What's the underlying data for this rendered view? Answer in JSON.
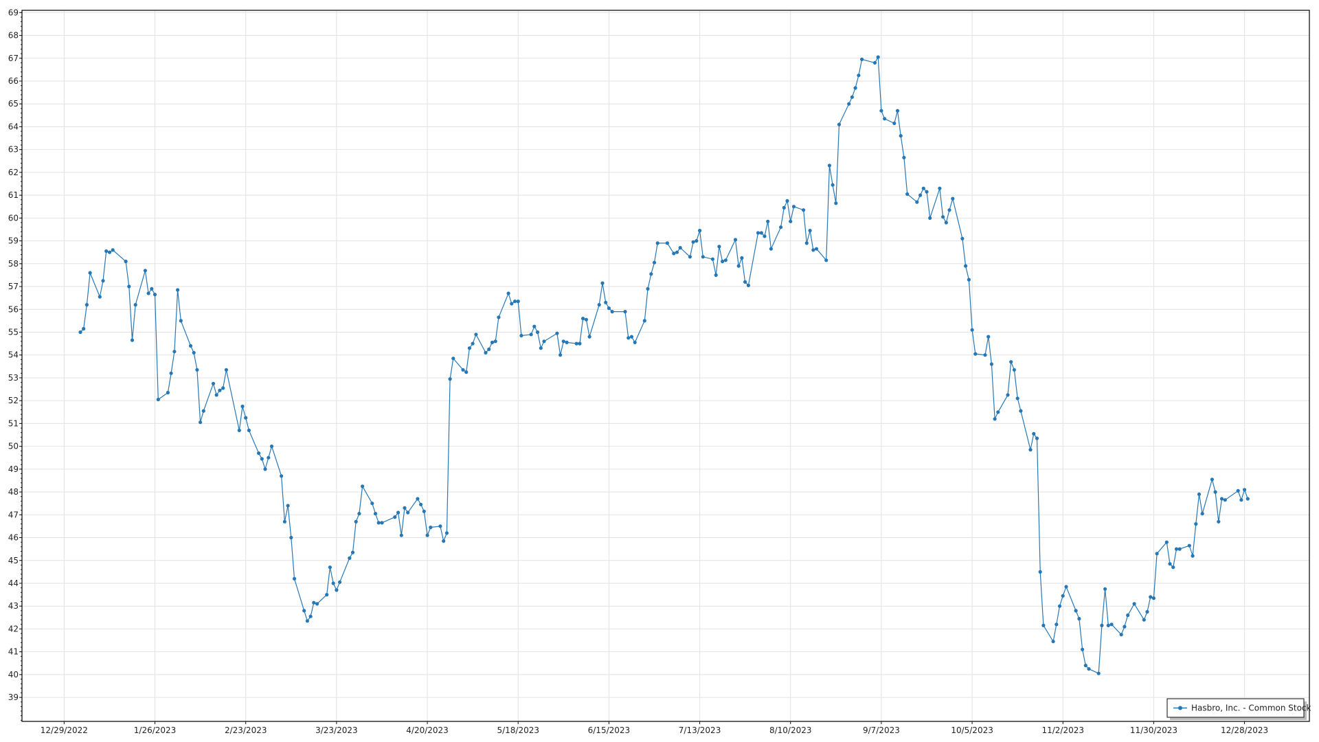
{
  "chart_data": {
    "type": "line",
    "title": "",
    "xlabel": "",
    "ylabel": "",
    "grid": true,
    "legend_position": "bottom-right",
    "series_color": "#2677b5",
    "xlim": [
      "12/16/2022",
      "1/17/2024"
    ],
    "ylim": [
      37.95,
      69.1
    ],
    "x_ticks": [
      "12/29/2022",
      "1/26/2023",
      "2/23/2023",
      "3/23/2023",
      "4/20/2023",
      "5/18/2023",
      "6/15/2023",
      "7/13/2023",
      "8/10/2023",
      "9/7/2023",
      "10/5/2023",
      "11/2/2023",
      "11/30/2023",
      "12/28/2023"
    ],
    "y_ticks": [
      39,
      40,
      41,
      42,
      43,
      44,
      45,
      46,
      47,
      48,
      49,
      50,
      51,
      52,
      53,
      54,
      55,
      56,
      57,
      58,
      59,
      60,
      61,
      62,
      63,
      64,
      65,
      66,
      67,
      68,
      69
    ],
    "series": [
      {
        "name": "Hasbro, Inc. - Common Stock",
        "x": [
          "1/3/2023",
          "1/4/2023",
          "1/5/2023",
          "1/6/2023",
          "1/9/2023",
          "1/10/2023",
          "1/11/2023",
          "1/12/2023",
          "1/13/2023",
          "1/17/2023",
          "1/18/2023",
          "1/19/2023",
          "1/20/2023",
          "1/23/2023",
          "1/24/2023",
          "1/25/2023",
          "1/26/2023",
          "1/27/2023",
          "1/30/2023",
          "1/31/2023",
          "2/1/2023",
          "2/2/2023",
          "2/3/2023",
          "2/6/2023",
          "2/7/2023",
          "2/8/2023",
          "2/9/2023",
          "2/10/2023",
          "2/13/2023",
          "2/14/2023",
          "2/15/2023",
          "2/16/2023",
          "2/17/2023",
          "2/21/2023",
          "2/22/2023",
          "2/23/2023",
          "2/24/2023",
          "2/27/2023",
          "2/28/2023",
          "3/1/2023",
          "3/2/2023",
          "3/3/2023",
          "3/6/2023",
          "3/7/2023",
          "3/8/2023",
          "3/9/2023",
          "3/10/2023",
          "3/13/2023",
          "3/14/2023",
          "3/15/2023",
          "3/16/2023",
          "3/17/2023",
          "3/20/2023",
          "3/21/2023",
          "3/22/2023",
          "3/23/2023",
          "3/24/2023",
          "3/27/2023",
          "3/28/2023",
          "3/29/2023",
          "3/30/2023",
          "3/31/2023",
          "4/3/2023",
          "4/4/2023",
          "4/5/2023",
          "4/6/2023",
          "4/10/2023",
          "4/11/2023",
          "4/12/2023",
          "4/13/2023",
          "4/14/2023",
          "4/17/2023",
          "4/18/2023",
          "4/19/2023",
          "4/20/2023",
          "4/21/2023",
          "4/24/2023",
          "4/25/2023",
          "4/26/2023",
          "4/27/2023",
          "4/28/2023",
          "5/1/2023",
          "5/2/2023",
          "5/3/2023",
          "5/4/2023",
          "5/5/2023",
          "5/8/2023",
          "5/9/2023",
          "5/10/2023",
          "5/11/2023",
          "5/12/2023",
          "5/15/2023",
          "5/16/2023",
          "5/17/2023",
          "5/18/2023",
          "5/19/2023",
          "5/22/2023",
          "5/23/2023",
          "5/24/2023",
          "5/25/2023",
          "5/26/2023",
          "5/30/2023",
          "5/31/2023",
          "6/1/2023",
          "6/2/2023",
          "6/5/2023",
          "6/6/2023",
          "6/7/2023",
          "6/8/2023",
          "6/9/2023",
          "6/12/2023",
          "6/13/2023",
          "6/14/2023",
          "6/15/2023",
          "6/16/2023",
          "6/20/2023",
          "6/21/2023",
          "6/22/2023",
          "6/23/2023",
          "6/26/2023",
          "6/27/2023",
          "6/28/2023",
          "6/29/2023",
          "6/30/2023",
          "7/3/2023",
          "7/5/2023",
          "7/6/2023",
          "7/7/2023",
          "7/10/2023",
          "7/11/2023",
          "7/12/2023",
          "7/13/2023",
          "7/14/2023",
          "7/17/2023",
          "7/18/2023",
          "7/19/2023",
          "7/20/2023",
          "7/21/2023",
          "7/24/2023",
          "7/25/2023",
          "7/26/2023",
          "7/27/2023",
          "7/28/2023",
          "7/31/2023",
          "8/1/2023",
          "8/2/2023",
          "8/3/2023",
          "8/4/2023",
          "8/7/2023",
          "8/8/2023",
          "8/9/2023",
          "8/10/2023",
          "8/11/2023",
          "8/14/2023",
          "8/15/2023",
          "8/16/2023",
          "8/17/2023",
          "8/18/2023",
          "8/21/2023",
          "8/22/2023",
          "8/23/2023",
          "8/24/2023",
          "8/25/2023",
          "8/28/2023",
          "8/29/2023",
          "8/30/2023",
          "8/31/2023",
          "9/1/2023",
          "9/5/2023",
          "9/6/2023",
          "9/7/2023",
          "9/8/2023",
          "9/11/2023",
          "9/12/2023",
          "9/13/2023",
          "9/14/2023",
          "9/15/2023",
          "9/18/2023",
          "9/19/2023",
          "9/20/2023",
          "9/21/2023",
          "9/22/2023",
          "9/25/2023",
          "9/26/2023",
          "9/27/2023",
          "9/28/2023",
          "9/29/2023",
          "10/2/2023",
          "10/3/2023",
          "10/4/2023",
          "10/5/2023",
          "10/6/2023",
          "10/9/2023",
          "10/10/2023",
          "10/11/2023",
          "10/12/2023",
          "10/13/2023",
          "10/16/2023",
          "10/17/2023",
          "10/18/2023",
          "10/19/2023",
          "10/20/2023",
          "10/23/2023",
          "10/24/2023",
          "10/25/2023",
          "10/26/2023",
          "10/27/2023",
          "10/30/2023",
          "10/31/2023",
          "11/1/2023",
          "11/2/2023",
          "11/3/2023",
          "11/6/2023",
          "11/7/2023",
          "11/8/2023",
          "11/9/2023",
          "11/10/2023",
          "11/13/2023",
          "11/14/2023",
          "11/15/2023",
          "11/16/2023",
          "11/17/2023",
          "11/20/2023",
          "11/21/2023",
          "11/22/2023",
          "11/24/2023",
          "11/27/2023",
          "11/28/2023",
          "11/29/2023",
          "11/30/2023",
          "12/1/2023",
          "12/4/2023",
          "12/5/2023",
          "12/6/2023",
          "12/7/2023",
          "12/8/2023",
          "12/11/2023",
          "12/12/2023",
          "12/13/2023",
          "12/14/2023",
          "12/15/2023",
          "12/18/2023",
          "12/19/2023",
          "12/20/2023",
          "12/21/2023",
          "12/22/2023",
          "12/26/2023",
          "12/27/2023",
          "12/28/2023",
          "12/29/2023"
        ],
        "y": [
          55.0,
          55.15,
          56.2,
          57.6,
          56.55,
          57.25,
          58.55,
          58.5,
          58.6,
          58.1,
          57.0,
          54.65,
          56.2,
          57.7,
          56.7,
          56.9,
          56.65,
          52.05,
          52.35,
          53.2,
          54.15,
          56.85,
          55.5,
          54.4,
          54.1,
          53.35,
          51.05,
          51.55,
          52.75,
          52.25,
          52.45,
          52.55,
          53.35,
          50.7,
          51.75,
          51.25,
          50.7,
          49.7,
          49.45,
          49.0,
          49.5,
          50.0,
          48.7,
          46.7,
          47.4,
          46.0,
          44.2,
          42.8,
          42.35,
          42.55,
          43.15,
          43.1,
          43.5,
          44.7,
          44.0,
          43.7,
          44.05,
          45.1,
          45.35,
          46.7,
          47.05,
          48.25,
          47.5,
          47.05,
          46.65,
          46.65,
          46.9,
          47.1,
          46.1,
          47.3,
          47.1,
          47.7,
          47.45,
          47.15,
          46.1,
          46.45,
          46.5,
          45.85,
          46.2,
          52.95,
          53.85,
          53.35,
          53.25,
          54.3,
          54.5,
          54.9,
          54.1,
          54.25,
          54.55,
          54.6,
          55.65,
          56.7,
          56.25,
          56.35,
          56.35,
          54.85,
          54.9,
          55.25,
          55.0,
          54.3,
          54.6,
          54.95,
          54.0,
          54.6,
          54.55,
          54.5,
          54.5,
          55.6,
          55.55,
          54.8,
          56.2,
          57.15,
          56.3,
          56.05,
          55.9,
          55.9,
          54.75,
          54.8,
          54.55,
          55.5,
          56.9,
          57.55,
          58.05,
          58.9,
          58.9,
          58.45,
          58.5,
          58.7,
          58.3,
          58.95,
          59.0,
          59.45,
          58.3,
          58.2,
          57.5,
          58.75,
          58.1,
          58.15,
          59.05,
          57.9,
          58.25,
          57.2,
          57.05,
          59.35,
          59.35,
          59.2,
          59.85,
          58.65,
          59.6,
          60.45,
          60.75,
          59.85,
          60.5,
          60.35,
          58.9,
          59.45,
          58.6,
          58.65,
          58.15,
          62.3,
          61.45,
          60.65,
          64.1,
          65.0,
          65.3,
          65.7,
          66.25,
          66.95,
          66.8,
          67.05,
          64.7,
          64.35,
          64.15,
          64.7,
          63.6,
          62.65,
          61.05,
          60.7,
          61.0,
          61.3,
          61.15,
          60.0,
          61.3,
          60.05,
          59.8,
          60.35,
          60.85,
          59.1,
          57.9,
          57.3,
          55.1,
          54.05,
          54.0,
          54.8,
          53.6,
          51.2,
          51.5,
          52.25,
          53.7,
          53.35,
          52.1,
          51.55,
          49.85,
          50.55,
          50.35,
          44.5,
          42.15,
          41.45,
          42.2,
          43.0,
          43.45,
          43.85,
          42.8,
          42.45,
          41.1,
          40.4,
          40.25,
          40.05,
          42.15,
          43.75,
          42.15,
          42.2,
          41.75,
          42.1,
          42.6,
          43.1,
          42.4,
          42.75,
          43.4,
          43.35,
          45.3,
          45.8,
          44.85,
          44.7,
          45.5,
          45.5,
          45.65,
          45.2,
          46.6,
          47.9,
          47.05,
          48.55,
          48.0,
          46.7,
          47.7,
          47.65,
          48.05,
          47.65,
          48.1,
          47.7
        ]
      }
    ]
  }
}
